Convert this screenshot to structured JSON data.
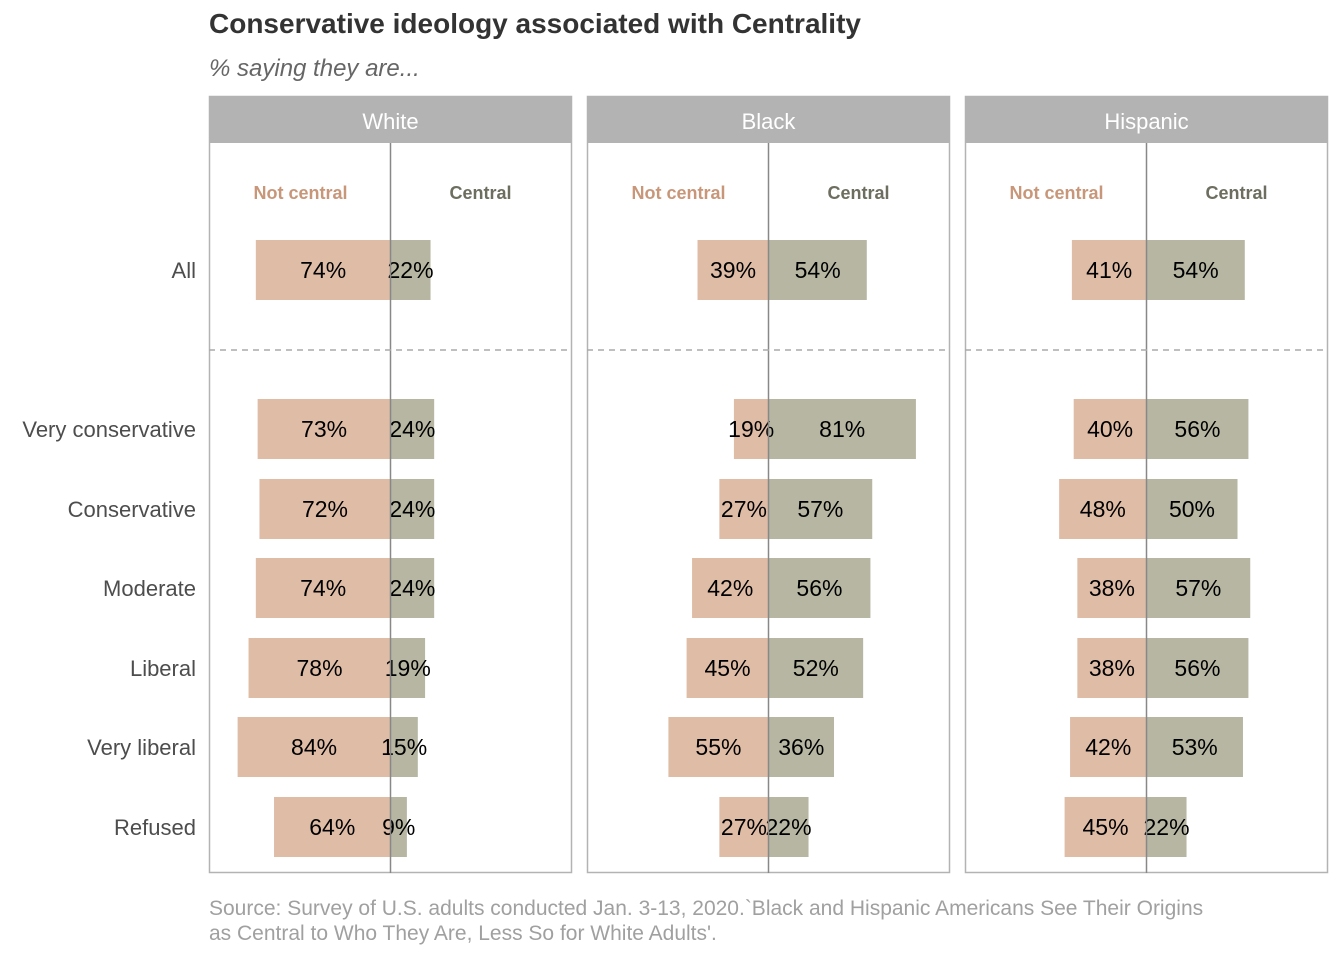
{
  "title": "Conservative ideology associated with Centrality",
  "subtitle": "% saying they are...",
  "source": "Source: Survey of U.S. adults conducted Jan. 3-13, 2020.`Black and Hispanic Americans See Their Origins as Central to Who They Are, Less So for White Adults'.",
  "legend": {
    "not_central": "Not central",
    "central": "Central"
  },
  "colors": {
    "not_central_bar": "#dfbca6",
    "central_bar": "#b6b6a2",
    "not_central_text": "#c8977a",
    "central_text": "#6e6e60",
    "strip": "#b3b3b3",
    "panel_border": "#b3b3b3",
    "center_line": "#888888",
    "divider": "#aaaaaa"
  },
  "chart_data": {
    "type": "bar",
    "orientation": "diverging-horizontal",
    "facets": [
      "White",
      "Black",
      "Hispanic"
    ],
    "categories": [
      "All",
      "Very conservative",
      "Conservative",
      "Moderate",
      "Liberal",
      "Very liberal",
      "Refused"
    ],
    "series": [
      {
        "name": "Not central",
        "values": {
          "White": [
            74,
            73,
            72,
            74,
            78,
            84,
            64
          ],
          "Black": [
            39,
            19,
            27,
            42,
            45,
            55,
            27
          ],
          "Hispanic": [
            41,
            40,
            48,
            38,
            38,
            42,
            45
          ]
        }
      },
      {
        "name": "Central",
        "values": {
          "White": [
            22,
            24,
            24,
            24,
            19,
            15,
            9
          ],
          "Black": [
            54,
            81,
            57,
            56,
            52,
            36,
            22
          ],
          "Hispanic": [
            54,
            56,
            50,
            57,
            56,
            53,
            22
          ]
        }
      }
    ],
    "xlim": [
      -100,
      100
    ],
    "value_suffix": "%"
  }
}
